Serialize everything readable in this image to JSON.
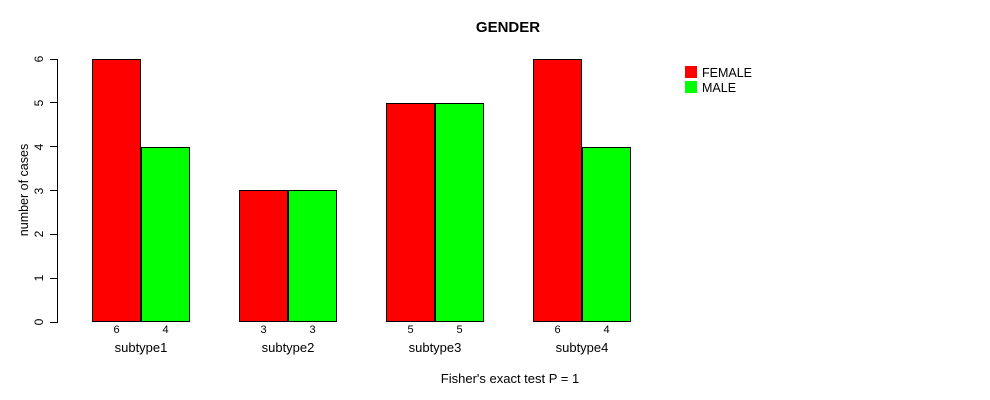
{
  "title": "GENDER",
  "y_axis": {
    "label": "number of cases",
    "ticks": [
      "0",
      "1",
      "2",
      "3",
      "4",
      "5",
      "6"
    ]
  },
  "x_axis": {
    "caption": "Fisher's exact test P = 1"
  },
  "legend": {
    "items": [
      {
        "label": "FEMALE",
        "color": "#FF0000"
      },
      {
        "label": "MALE",
        "color": "#00FF00"
      }
    ]
  },
  "chart_data": {
    "type": "bar",
    "title": "GENDER",
    "ylabel": "number of cases",
    "xlabel": "Fisher's exact test P = 1",
    "categories": [
      "subtype1",
      "subtype2",
      "subtype3",
      "subtype4"
    ],
    "series": [
      {
        "name": "FEMALE",
        "color": "#FF0000",
        "values": [
          6,
          3,
          5,
          6
        ]
      },
      {
        "name": "MALE",
        "color": "#00FF00",
        "values": [
          4,
          3,
          5,
          4
        ]
      }
    ],
    "bar_value_labels": [
      [
        "6",
        "4"
      ],
      [
        "3",
        "3"
      ],
      [
        "5",
        "5"
      ],
      [
        "6",
        "4"
      ]
    ],
    "yticks": [
      0,
      1,
      2,
      3,
      4,
      5,
      6
    ],
    "ylim": [
      0,
      6
    ],
    "grid": false,
    "legend_position": "right",
    "bar_border_color": "#000000",
    "background": "#FFFFFF"
  }
}
